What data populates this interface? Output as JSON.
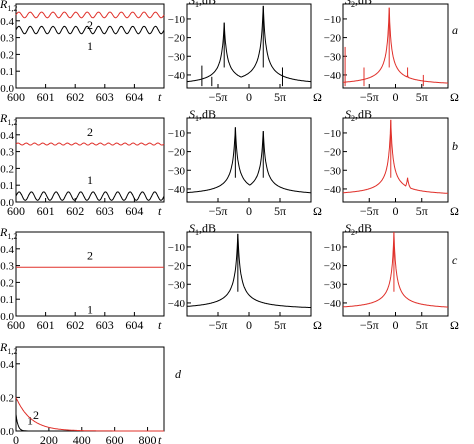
{
  "panel_letters": [
    "a",
    "b",
    "c",
    "d"
  ],
  "colors": {
    "series1": "#000000",
    "series2": "#e0302a"
  },
  "chart_data": [
    {
      "id": "a-time",
      "type": "line",
      "ylabel": "R1,2",
      "xlabel": "t",
      "xlim": [
        600,
        605
      ],
      "ylim": [
        0,
        0.5
      ],
      "xticks": [
        "600",
        "601",
        "602",
        "603",
        "604"
      ],
      "yticks": [
        "0.0",
        "0.1",
        "0.2",
        "0.3",
        "0.4"
      ],
      "series": [
        {
          "name": "1",
          "color": "#000000",
          "mean": 0.345,
          "amp": 0.022,
          "periods": 13
        },
        {
          "name": "2",
          "color": "#e0302a",
          "mean": 0.435,
          "amp": 0.017,
          "periods": 13
        }
      ]
    },
    {
      "id": "a-S1",
      "type": "line",
      "ylabel": "S1,dB",
      "xlabel": "Ω",
      "color": "#000000",
      "xlim": [
        -10,
        10
      ],
      "ylim": [
        -47,
        -2
      ],
      "xticks": [
        "−5π",
        "0",
        "5π"
      ],
      "yticks": [
        "−10",
        "−20",
        "−30",
        "−40"
      ],
      "baseline": -46,
      "peaks": [
        [
          -4,
          -12
        ],
        [
          2.3,
          -3
        ]
      ],
      "spikes": [
        [
          -7.6,
          -35
        ],
        [
          5.4,
          -36
        ],
        [
          -6,
          -41
        ]
      ]
    },
    {
      "id": "a-S2",
      "type": "line",
      "ylabel": "S2,dB",
      "xlabel": "Ω",
      "color": "#e0302a",
      "xlim": [
        -10,
        10
      ],
      "ylim": [
        -47,
        -2
      ],
      "xticks": [
        "−5π",
        "0",
        "5π"
      ],
      "yticks": [
        "−10",
        "−20",
        "−30",
        "−40"
      ],
      "baseline": -46,
      "peaks": [
        [
          -1.2,
          -4
        ],
        [
          2.3,
          -40
        ]
      ],
      "spikes": [
        [
          -6,
          -36
        ],
        [
          5.3,
          -40
        ],
        [
          -9.6,
          -25
        ]
      ]
    },
    {
      "id": "b-time",
      "type": "line",
      "ylabel": "R1,2",
      "xlabel": "t",
      "xlim": [
        600,
        605
      ],
      "ylim": [
        0,
        0.5
      ],
      "xticks": [
        "600",
        "601",
        "602",
        "603",
        "604"
      ],
      "yticks": [
        "0.0",
        "0.1",
        "0.2",
        "0.3",
        "0.4"
      ],
      "series": [
        {
          "name": "1",
          "color": "#000000",
          "mean": 0.035,
          "amp": 0.025,
          "periods": 12
        },
        {
          "name": "2",
          "color": "#e0302a",
          "mean": 0.345,
          "amp": 0.006,
          "periods": 18
        }
      ]
    },
    {
      "id": "b-S1",
      "type": "line",
      "ylabel": "S1,dB",
      "xlabel": "Ω",
      "color": "#000000",
      "xlim": [
        -10,
        10
      ],
      "ylim": [
        -47,
        -2
      ],
      "xticks": [
        "−5π",
        "0",
        "5π"
      ],
      "yticks": [
        "−10",
        "−20",
        "−30",
        "−40"
      ],
      "baseline": -44,
      "peaks": [
        [
          -2.2,
          -7
        ],
        [
          2.3,
          -9
        ]
      ],
      "spikes": []
    },
    {
      "id": "b-S2",
      "type": "line",
      "ylabel": "S2,dB",
      "xlabel": "Ω",
      "color": "#e0302a",
      "xlim": [
        -10,
        10
      ],
      "ylim": [
        -47,
        -2
      ],
      "xticks": [
        "−5π",
        "0",
        "5π"
      ],
      "yticks": [
        "−10",
        "−20",
        "−30",
        "−40"
      ],
      "baseline": -44,
      "peaks": [
        [
          -0.9,
          -3
        ],
        [
          2.3,
          -34
        ]
      ],
      "spikes": []
    },
    {
      "id": "c-time",
      "type": "line",
      "ylabel": "R1,2",
      "xlabel": "t",
      "xlim": [
        600,
        605
      ],
      "ylim": [
        0,
        0.5
      ],
      "xticks": [
        "600",
        "601",
        "602",
        "603",
        "604"
      ],
      "yticks": [
        "0.0",
        "0.1",
        "0.2",
        "0.3",
        "0.4"
      ],
      "series": [
        {
          "name": "1",
          "color": "#000000",
          "mean": 0.0,
          "amp": 0.0,
          "periods": 0
        },
        {
          "name": "2",
          "color": "#e0302a",
          "mean": 0.29,
          "amp": 0.0,
          "periods": 0
        }
      ]
    },
    {
      "id": "c-S1",
      "type": "line",
      "ylabel": "S1,dB",
      "xlabel": "Ω",
      "color": "#000000",
      "xlim": [
        -10,
        10
      ],
      "ylim": [
        -47,
        -2
      ],
      "xticks": [
        "−5π",
        "0",
        "5π"
      ],
      "yticks": [
        "−10",
        "−20",
        "−30",
        "−40"
      ],
      "baseline": -44,
      "peaks": [
        [
          -1.8,
          -3
        ]
      ],
      "spikes": []
    },
    {
      "id": "c-S2",
      "type": "line",
      "ylabel": "S2,dB",
      "xlabel": "Ω",
      "color": "#e0302a",
      "xlim": [
        -10,
        10
      ],
      "ylim": [
        -47,
        -2
      ],
      "xticks": [
        "−5π",
        "0",
        "5π"
      ],
      "yticks": [
        "−10",
        "−20",
        "−30",
        "−40"
      ],
      "baseline": -44,
      "peaks": [
        [
          -0.3,
          -2
        ]
      ],
      "spikes": []
    },
    {
      "id": "d-time",
      "type": "line",
      "ylabel": "R1,2",
      "xlabel": "t",
      "xlim": [
        0,
        900
      ],
      "ylim": [
        0,
        0.5
      ],
      "xticks": [
        "0",
        "200",
        "400",
        "600",
        "800"
      ],
      "yticks": [
        "0.0",
        "0.2",
        "0.4"
      ],
      "series": [
        {
          "name": "1",
          "color": "#000000",
          "decay": true,
          "start": 0.1,
          "tau": 12
        },
        {
          "name": "2",
          "color": "#e0302a",
          "decay": true,
          "start": 0.2,
          "tau": 90
        }
      ]
    }
  ]
}
